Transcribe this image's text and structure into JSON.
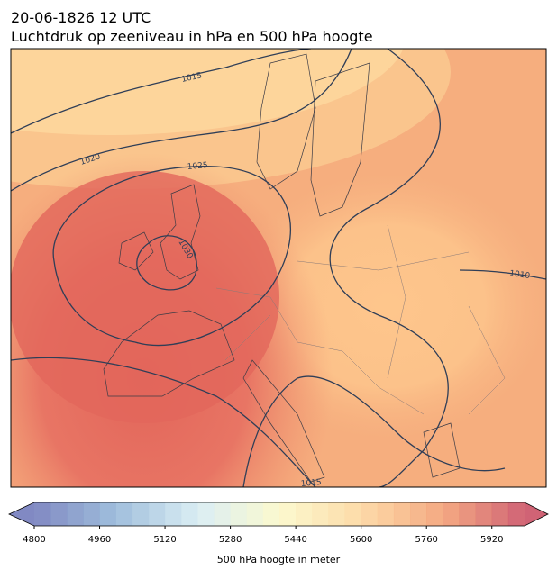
{
  "header": {
    "date": "20-06-1826 12 UTC",
    "title": "Luchtdruk op zeeniveau in hPa en 500 hPa hoogte"
  },
  "map": {
    "isobar_labels": [
      "1015",
      "1020",
      "1025",
      "1030",
      "1010",
      "1015"
    ]
  },
  "colorbar": {
    "lim": [
      4800,
      6000
    ],
    "step": 40,
    "ticks": [
      4800,
      4960,
      5120,
      5280,
      5440,
      5600,
      5760,
      5920
    ],
    "colors": [
      "#6b74b8",
      "#8fb3d6",
      "#d4ebf2",
      "#fbf8c6",
      "#fdd49a",
      "#f29a6c",
      "#c8485d"
    ],
    "label": "500 hPa hoogte in meter"
  }
}
